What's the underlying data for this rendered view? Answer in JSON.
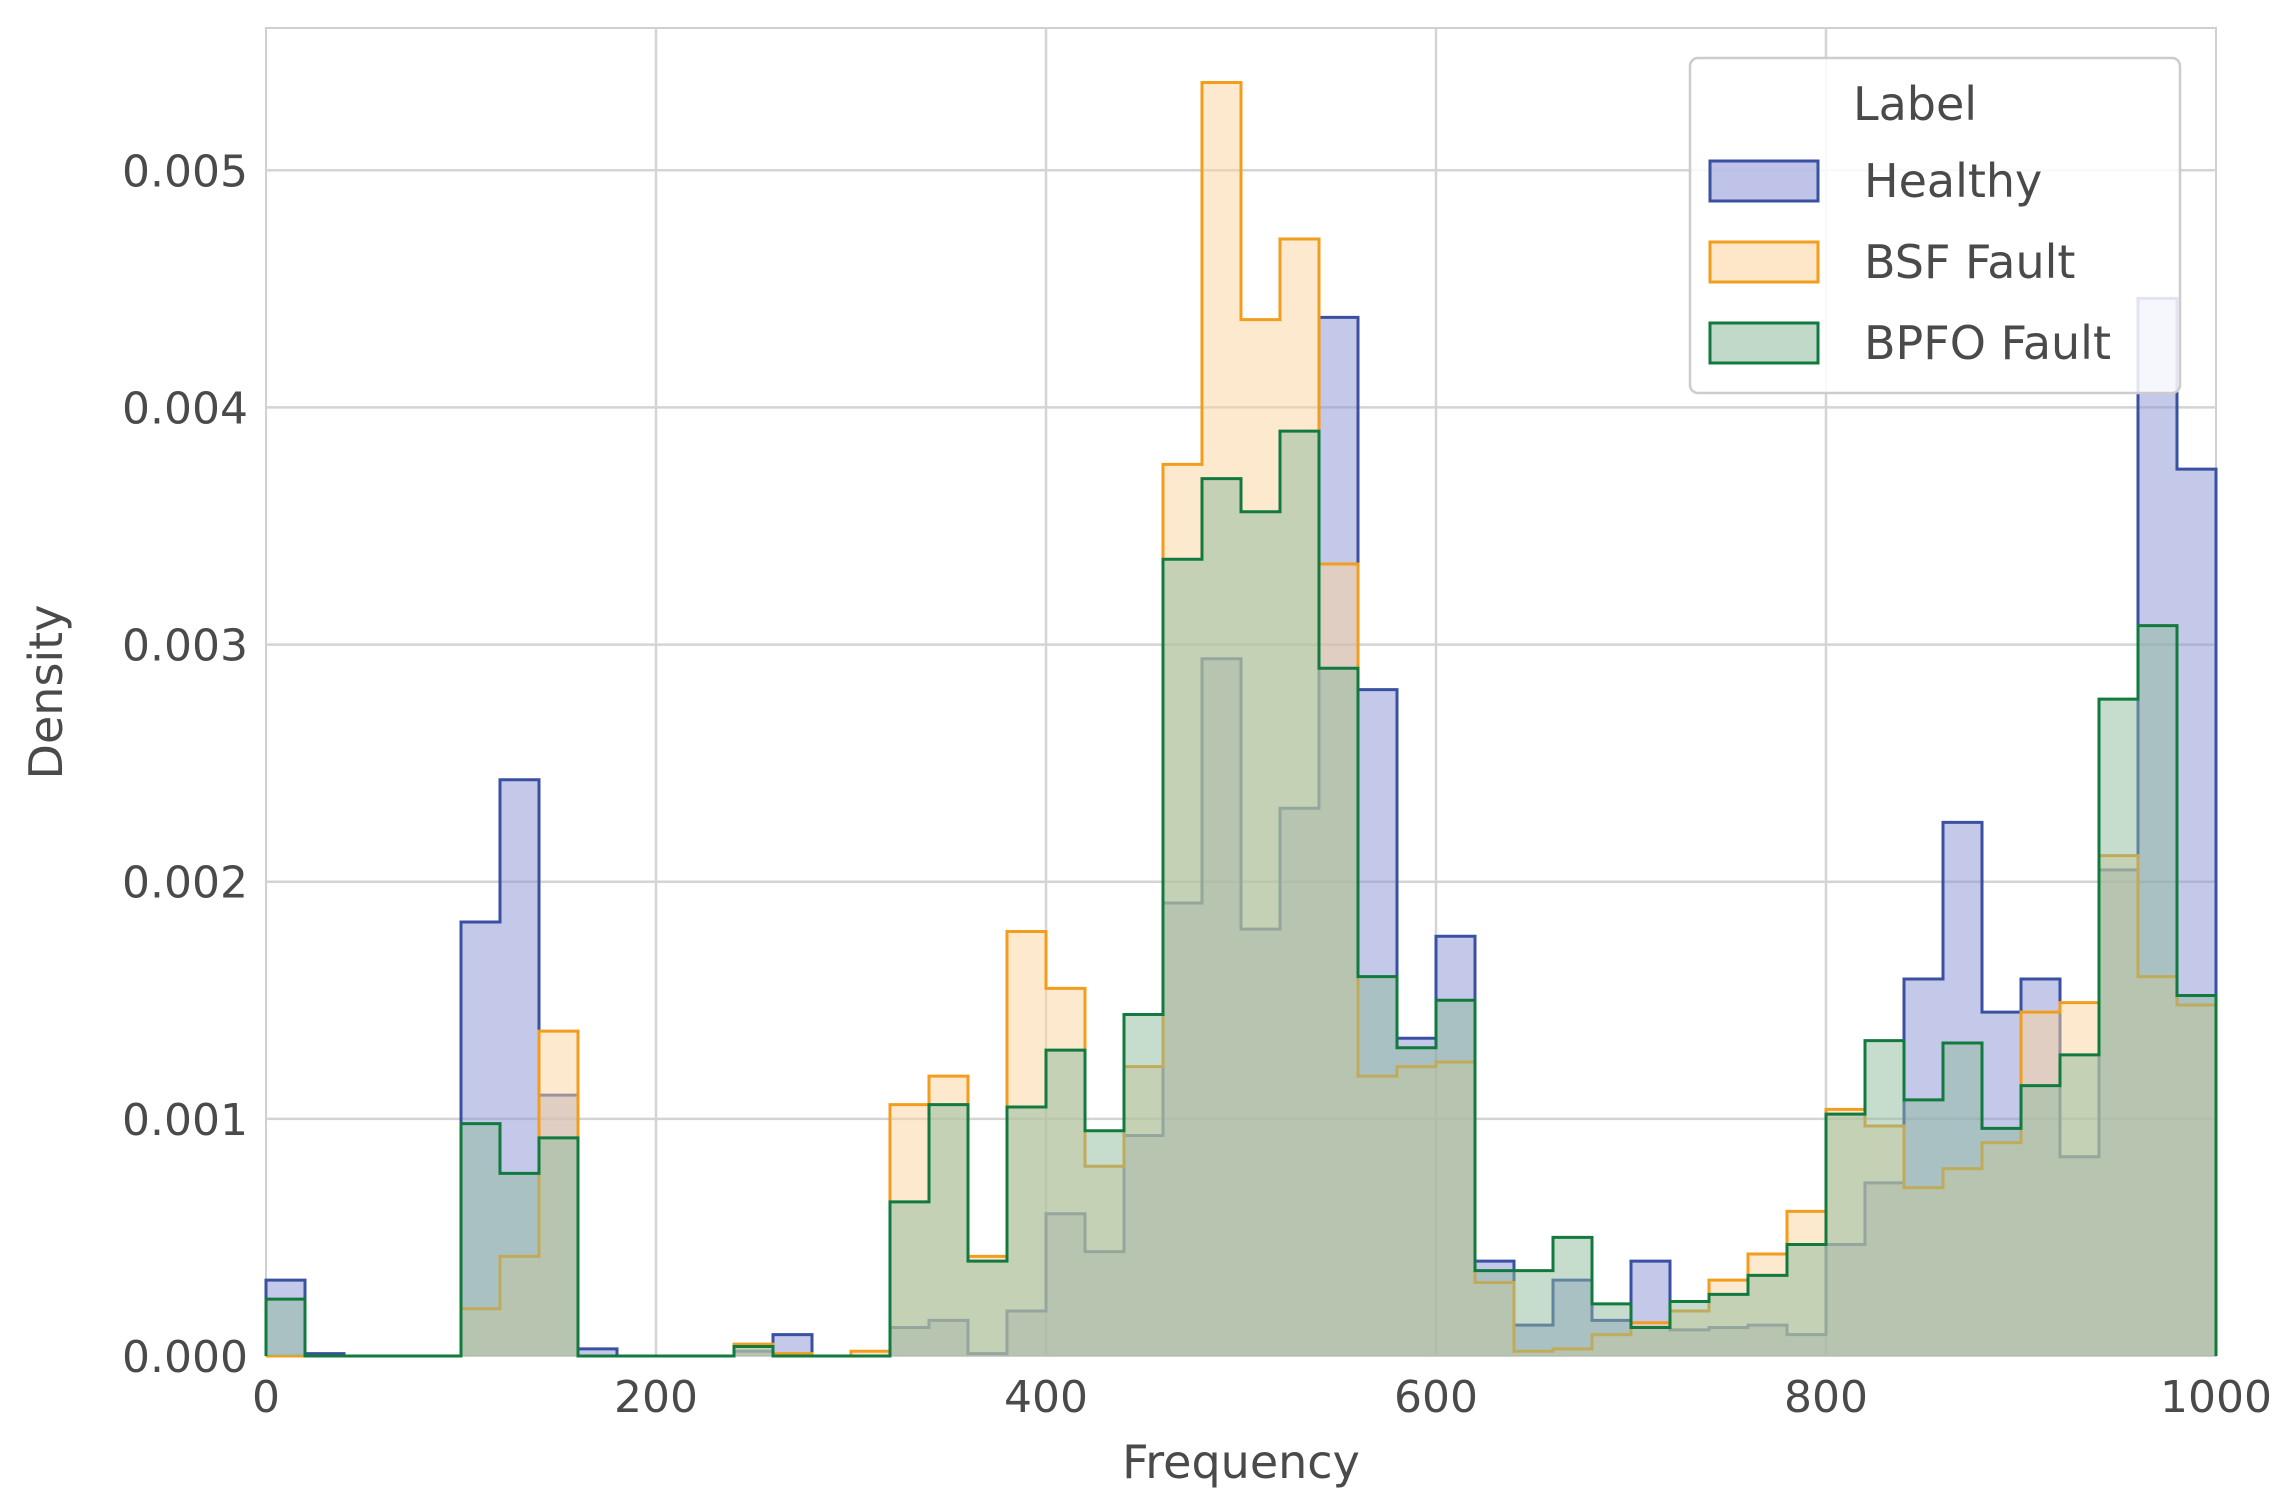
{
  "chart_data": {
    "type": "histogram",
    "xlabel": "Frequency",
    "ylabel": "Density",
    "xlim": [
      0,
      1000
    ],
    "ylim": [
      0,
      0.0056
    ],
    "grid": true,
    "legend": {
      "title": "Label",
      "position": "top-right"
    },
    "x_ticks": [
      0,
      200,
      400,
      600,
      800,
      1000
    ],
    "x_tick_labels": [
      "0",
      "200",
      "400",
      "600",
      "800",
      "1000"
    ],
    "y_ticks": [
      0,
      0.001,
      0.002,
      0.003,
      0.004,
      0.005
    ],
    "y_tick_labels": [
      "0.000",
      "0.001",
      "0.002",
      "0.003",
      "0.004",
      "0.005"
    ],
    "bin_edges": [
      0,
      20,
      40,
      60,
      80,
      100,
      120,
      140,
      160,
      180,
      200,
      220,
      240,
      260,
      280,
      300,
      320,
      340,
      360,
      380,
      400,
      420,
      440,
      460,
      480,
      500,
      520,
      540,
      560,
      580,
      600,
      620,
      640,
      660,
      680,
      700,
      720,
      740,
      760,
      780,
      800,
      820,
      840,
      860,
      880,
      900,
      920,
      940,
      960,
      980,
      1000
    ],
    "series": [
      {
        "name": "Healthy",
        "color": "#3a50a2",
        "fill": "#8a92d3",
        "values": [
          0.00032,
          1e-05,
          0,
          0,
          0,
          0.00183,
          0.00243,
          0.0011,
          3e-05,
          0,
          0,
          0,
          2e-05,
          9e-05,
          0,
          0,
          0.00012,
          0.00015,
          1e-05,
          0.00019,
          0.0006,
          0.00044,
          0.00093,
          0.00191,
          0.00294,
          0.0018,
          0.00231,
          0.00438,
          0.00281,
          0.00134,
          0.00177,
          0.0004,
          0.00013,
          0.00032,
          0.00015,
          0.0004,
          0.00011,
          0.00012,
          0.00013,
          9e-05,
          0.00047,
          0.00073,
          0.00159,
          0.00225,
          0.00145,
          0.00159,
          0.00084,
          0.00205,
          0.00446,
          0.00374
        ]
      },
      {
        "name": "BSF Fault",
        "color": "#f29d1e",
        "fill": "#fcd39b",
        "values": [
          0,
          0,
          0,
          0,
          0,
          0.0002,
          0.00042,
          0.00137,
          0,
          0,
          0,
          0,
          5e-05,
          1e-05,
          0,
          2e-05,
          0.00106,
          0.00118,
          0.00042,
          0.00179,
          0.00155,
          0.0008,
          0.00122,
          0.00376,
          0.00537,
          0.00437,
          0.00471,
          0.00334,
          0.00118,
          0.00122,
          0.00124,
          0.00031,
          2e-05,
          3e-05,
          9e-05,
          0.00014,
          0.00019,
          0.00032,
          0.00043,
          0.00061,
          0.00104,
          0.00097,
          0.00071,
          0.00079,
          0.0009,
          0.00145,
          0.00149,
          0.00211,
          0.0016,
          0.00148
        ]
      },
      {
        "name": "BPFO Fault",
        "color": "#127a3e",
        "fill": "#8eb99c",
        "values": [
          0.00024,
          0,
          0,
          0,
          0,
          0.00098,
          0.00077,
          0.00092,
          0,
          0,
          0,
          0,
          4e-05,
          0,
          0,
          0,
          0.00065,
          0.00106,
          0.0004,
          0.00105,
          0.00129,
          0.00095,
          0.00144,
          0.00336,
          0.0037,
          0.00356,
          0.0039,
          0.0029,
          0.0016,
          0.0013,
          0.0015,
          0.00036,
          0.00036,
          0.0005,
          0.00022,
          0.00012,
          0.00023,
          0.00026,
          0.00034,
          0.00047,
          0.00102,
          0.00133,
          0.00108,
          0.00132,
          0.00096,
          0.00114,
          0.00127,
          0.00277,
          0.00308,
          0.00152
        ]
      }
    ]
  }
}
